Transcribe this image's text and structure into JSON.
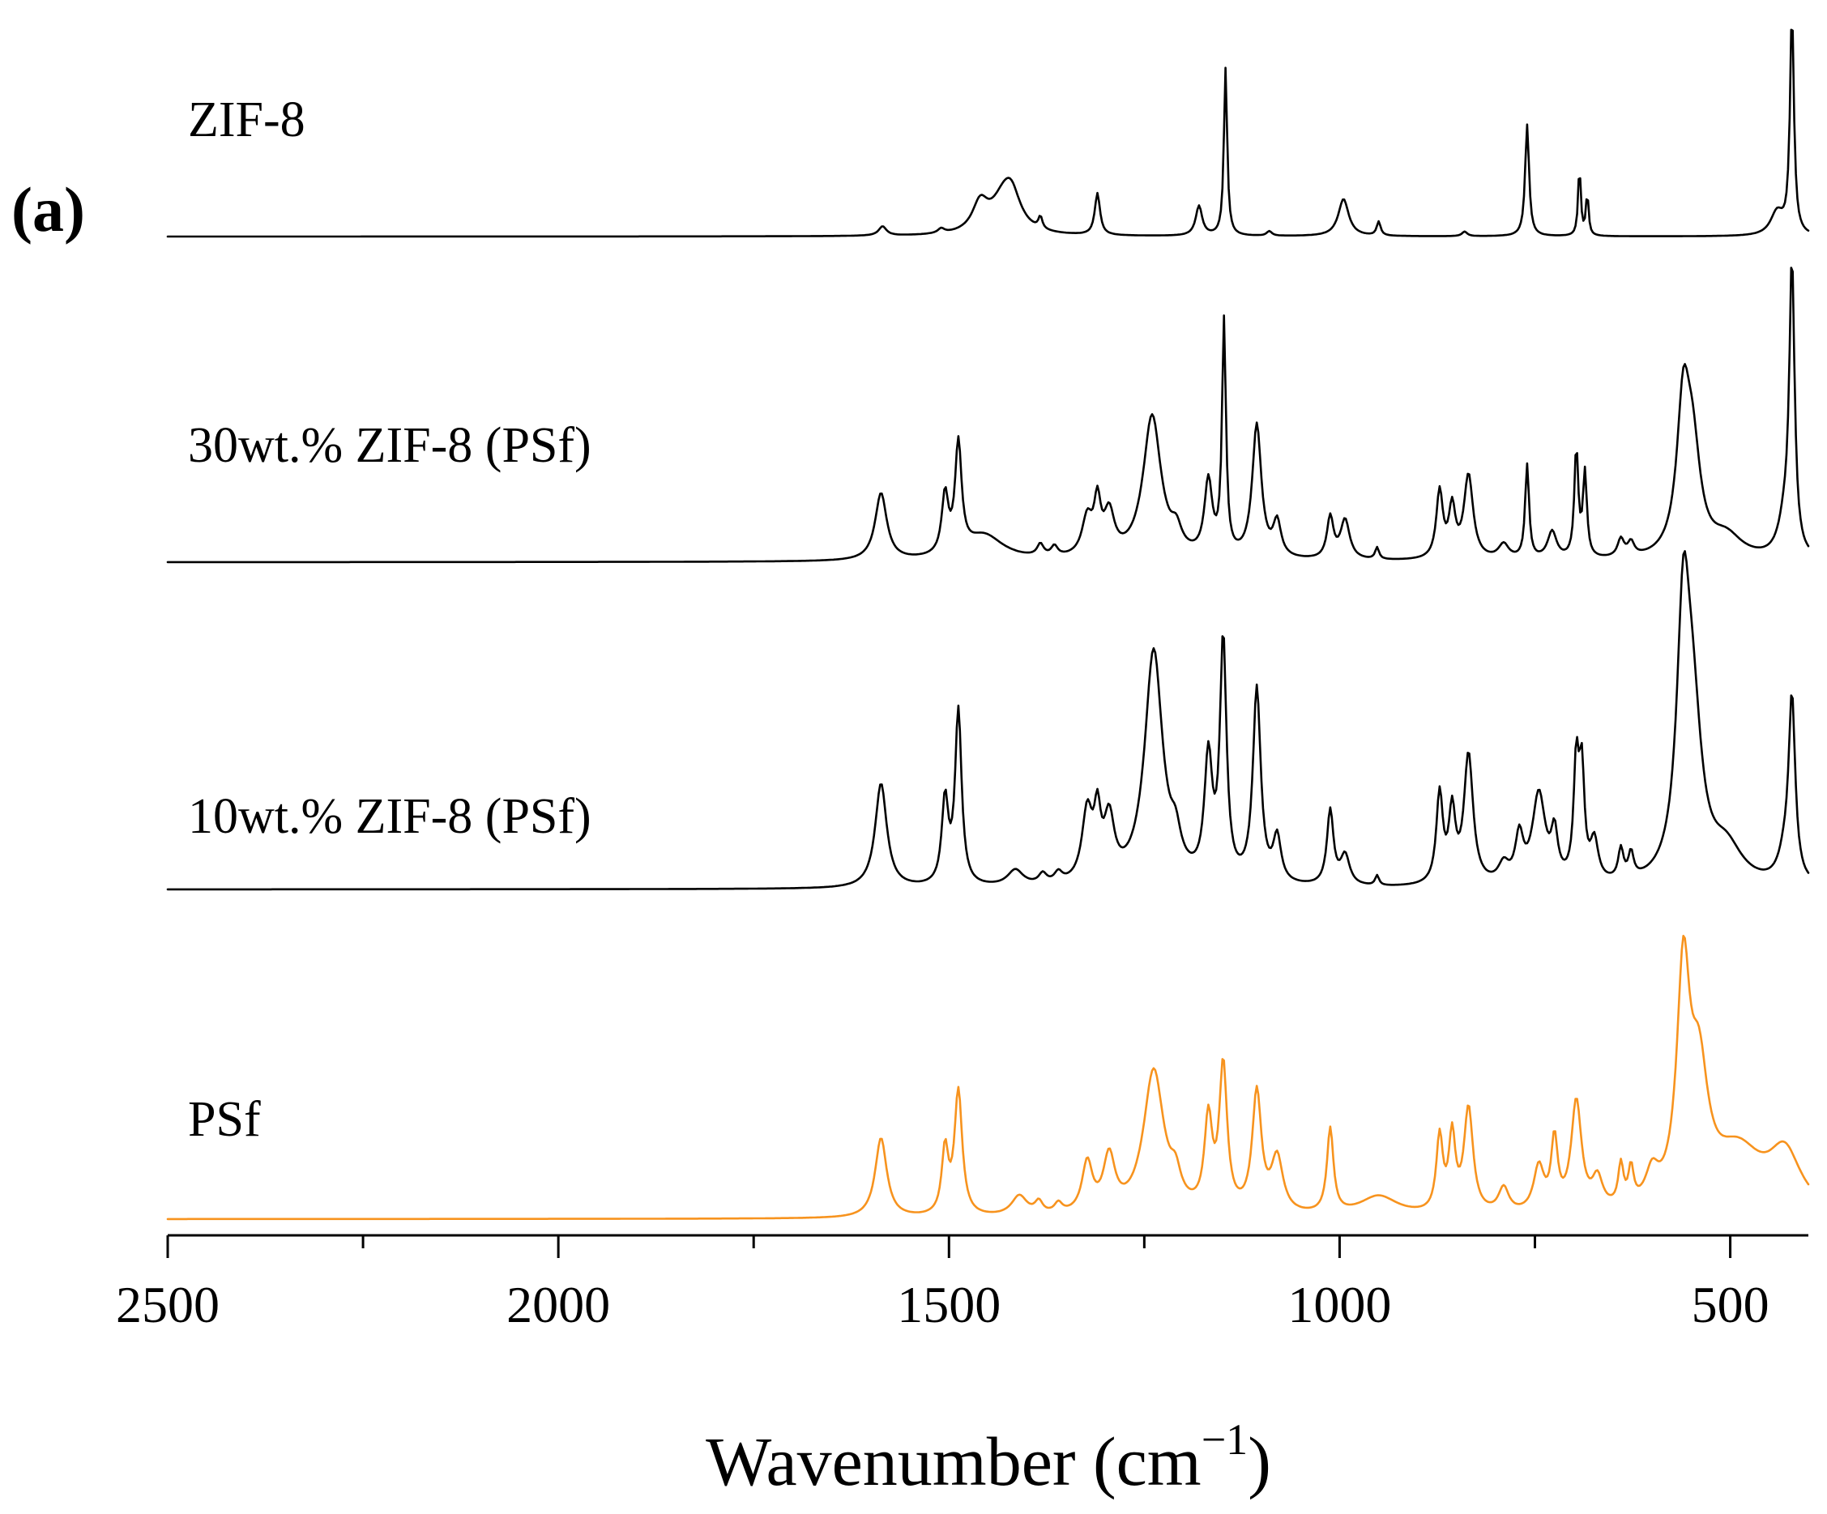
{
  "chart_data": {
    "type": "line",
    "panel_label_open": "(",
    "panel_label_letter": "a",
    "panel_label_close": ")",
    "xlabel_main": "Wavenumber (cm",
    "xlabel_superscript": "−1",
    "xlabel_close": ")",
    "xlim": [
      2500,
      400
    ],
    "x_reversed": true,
    "y_stacked": true,
    "y_axis_shown": false,
    "x_ticks": [
      2500,
      2000,
      1500,
      1000,
      500
    ],
    "x_tick_labels": [
      "2500",
      "2000",
      "1500",
      "1000",
      "500"
    ],
    "x_minor_ticks": [
      2250,
      1750,
      1250,
      750
    ],
    "series": [
      {
        "name": "ZIF-8",
        "color": "#000000",
        "baseline": 0,
        "peaks": [
          [
            1585,
            0.1,
            6
          ],
          [
            1510,
            0.05,
            5
          ],
          [
            1460,
            0.3,
            12
          ],
          [
            1430,
            0.35,
            20
          ],
          [
            1420,
            0.3,
            14
          ],
          [
            1383,
            0.13,
            3
          ],
          [
            1310,
            0.45,
            4
          ],
          [
            1180,
            0.32,
            5
          ],
          [
            1146,
            1.8,
            2.5
          ],
          [
            1090,
            0.05,
            4
          ],
          [
            995,
            0.4,
            8
          ],
          [
            950,
            0.15,
            3
          ],
          [
            840,
            0.05,
            4
          ],
          [
            760,
            1.2,
            3
          ],
          [
            693,
            0.75,
            2
          ],
          [
            683,
            0.45,
            2
          ],
          [
            421,
            2.4,
            3
          ],
          [
            440,
            0.25,
            10
          ]
        ]
      },
      {
        "name": "30wt.% ZIF-8  (PSf)",
        "color": "#000000",
        "baseline": 0,
        "peaks": [
          [
            1587,
            0.68,
            9
          ],
          [
            1505,
            0.6,
            5
          ],
          [
            1488,
            1.1,
            5
          ],
          [
            1455,
            0.25,
            30
          ],
          [
            1383,
            0.12,
            5
          ],
          [
            1365,
            0.1,
            5
          ],
          [
            1323,
            0.38,
            8
          ],
          [
            1310,
            0.5,
            5
          ],
          [
            1295,
            0.42,
            8
          ],
          [
            1240,
            1.45,
            14
          ],
          [
            1209,
            0.2,
            8
          ],
          [
            1168,
            0.75,
            6
          ],
          [
            1148,
            2.35,
            3
          ],
          [
            1106,
            1.35,
            7
          ],
          [
            1080,
            0.35,
            6
          ],
          [
            1012,
            0.42,
            5
          ],
          [
            993,
            0.4,
            7
          ],
          [
            952,
            0.12,
            3
          ],
          [
            872,
            0.68,
            5
          ],
          [
            856,
            0.5,
            5
          ],
          [
            835,
            0.85,
            7
          ],
          [
            790,
            0.15,
            8
          ],
          [
            760,
            0.95,
            3
          ],
          [
            728,
            0.28,
            7
          ],
          [
            697,
            1.1,
            3
          ],
          [
            686,
            0.85,
            3
          ],
          [
            640,
            0.18,
            5
          ],
          [
            627,
            0.14,
            5
          ],
          [
            560,
            1.45,
            10
          ],
          [
            548,
            0.95,
            12
          ],
          [
            505,
            0.22,
            25
          ],
          [
            421,
            2.9,
            4
          ],
          [
            430,
            0.35,
            10
          ]
        ]
      },
      {
        "name": "10wt.% ZIF-8 (PSf)",
        "color": "#000000",
        "baseline": 0,
        "peaks": [
          [
            1587,
            1.05,
            9
          ],
          [
            1505,
            0.85,
            5
          ],
          [
            1488,
            1.75,
            5
          ],
          [
            1415,
            0.16,
            12
          ],
          [
            1380,
            0.1,
            6
          ],
          [
            1360,
            0.1,
            6
          ],
          [
            1323,
            0.7,
            8
          ],
          [
            1310,
            0.58,
            5
          ],
          [
            1295,
            0.6,
            8
          ],
          [
            1238,
            2.35,
            14
          ],
          [
            1210,
            0.3,
            8
          ],
          [
            1168,
            1.2,
            6
          ],
          [
            1149,
            2.4,
            5
          ],
          [
            1106,
            1.95,
            6
          ],
          [
            1080,
            0.45,
            6
          ],
          [
            1012,
            0.75,
            5
          ],
          [
            993,
            0.3,
            7
          ],
          [
            952,
            0.1,
            3
          ],
          [
            872,
            0.9,
            5
          ],
          [
            856,
            0.7,
            5
          ],
          [
            835,
            1.3,
            7
          ],
          [
            790,
            0.18,
            8
          ],
          [
            770,
            0.45,
            6
          ],
          [
            745,
            0.9,
            10
          ],
          [
            725,
            0.45,
            5
          ],
          [
            697,
            1.15,
            4
          ],
          [
            690,
            1.05,
            4
          ],
          [
            674,
            0.4,
            6
          ],
          [
            640,
            0.3,
            4
          ],
          [
            627,
            0.25,
            4
          ],
          [
            560,
            2.45,
            10
          ],
          [
            548,
            1.45,
            14
          ],
          [
            505,
            0.35,
            25
          ],
          [
            421,
            1.8,
            5
          ],
          [
            430,
            0.25,
            10
          ]
        ]
      },
      {
        "name": "PSf",
        "color": "#F7931E",
        "baseline": 0,
        "peaks": [
          [
            1587,
            0.8,
            9
          ],
          [
            1505,
            0.65,
            5
          ],
          [
            1488,
            1.25,
            6
          ],
          [
            1410,
            0.2,
            12
          ],
          [
            1385,
            0.12,
            6
          ],
          [
            1360,
            0.1,
            6
          ],
          [
            1323,
            0.5,
            8
          ],
          [
            1295,
            0.55,
            9
          ],
          [
            1238,
            1.45,
            16
          ],
          [
            1210,
            0.25,
            8
          ],
          [
            1168,
            0.9,
            6
          ],
          [
            1149,
            1.45,
            6
          ],
          [
            1106,
            1.2,
            7
          ],
          [
            1080,
            0.55,
            9
          ],
          [
            1012,
            0.85,
            5
          ],
          [
            950,
            0.2,
            30
          ],
          [
            872,
            0.75,
            5
          ],
          [
            856,
            0.75,
            5
          ],
          [
            835,
            1.05,
            7
          ],
          [
            790,
            0.25,
            8
          ],
          [
            745,
            0.45,
            8
          ],
          [
            725,
            0.7,
            5
          ],
          [
            697,
            1.1,
            8
          ],
          [
            670,
            0.3,
            8
          ],
          [
            640,
            0.4,
            4
          ],
          [
            627,
            0.35,
            4
          ],
          [
            600,
            0.3,
            10
          ],
          [
            560,
            2.25,
            10
          ],
          [
            540,
            1.2,
            14
          ],
          [
            490,
            0.6,
            40
          ],
          [
            430,
            0.55,
            25
          ]
        ]
      }
    ]
  }
}
